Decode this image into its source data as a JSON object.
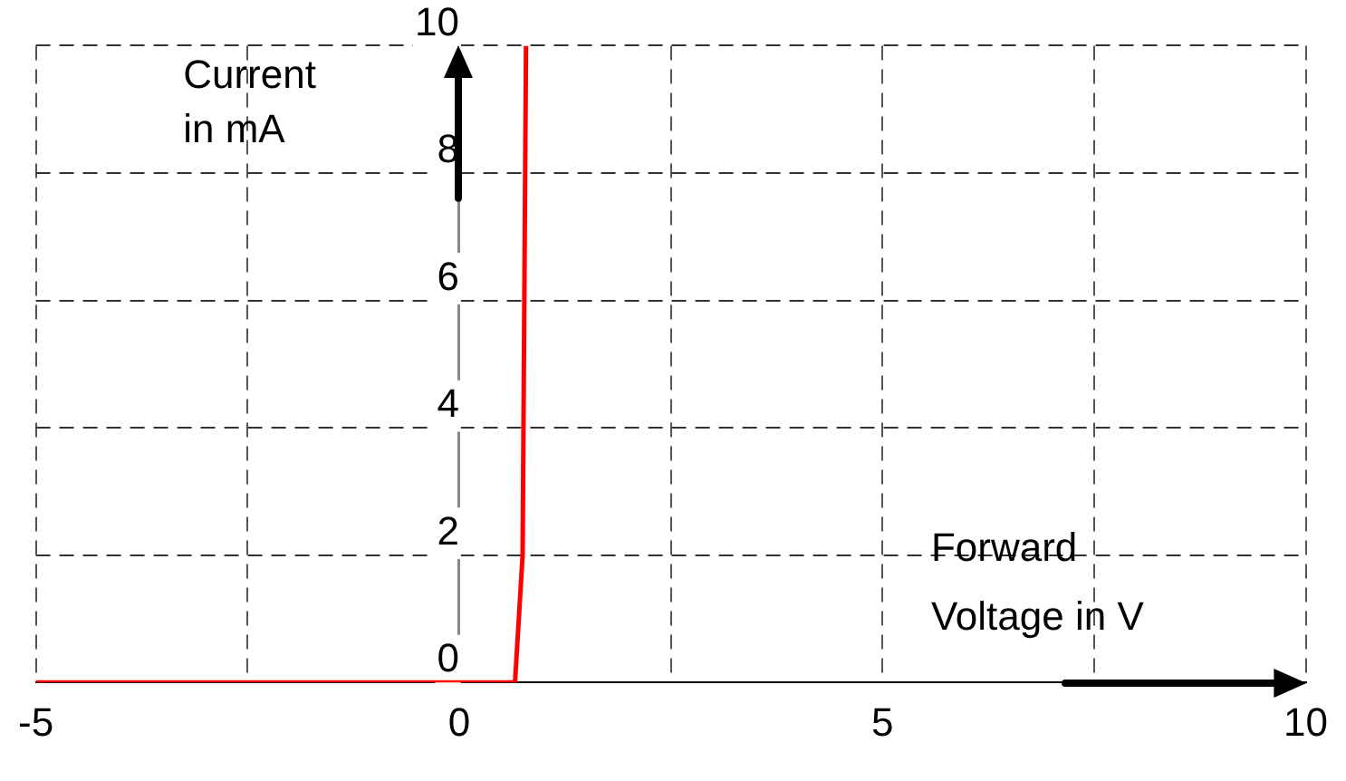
{
  "chart_data": {
    "type": "line",
    "xlabel": "Forward\nVoltage in V",
    "ylabel": "Current\nin mA",
    "x": [
      -5,
      0.66,
      0.75,
      0.79
    ],
    "series": [
      {
        "color": "#ff0000",
        "values": [
          0,
          0,
          2,
          10
        ]
      }
    ],
    "xlim": [
      -5,
      10
    ],
    "ylim": [
      0,
      10
    ],
    "xticks": [
      -5,
      {
        "value": -2.5,
        "label": null
      },
      0,
      {
        "value": 2.5,
        "label": null
      },
      5,
      {
        "value": 7.5,
        "label": null
      },
      10
    ],
    "yticks": [
      0,
      2,
      4,
      6,
      8,
      10
    ],
    "grid": true,
    "legend": false,
    "marker": "none",
    "line_style": "solid"
  }
}
